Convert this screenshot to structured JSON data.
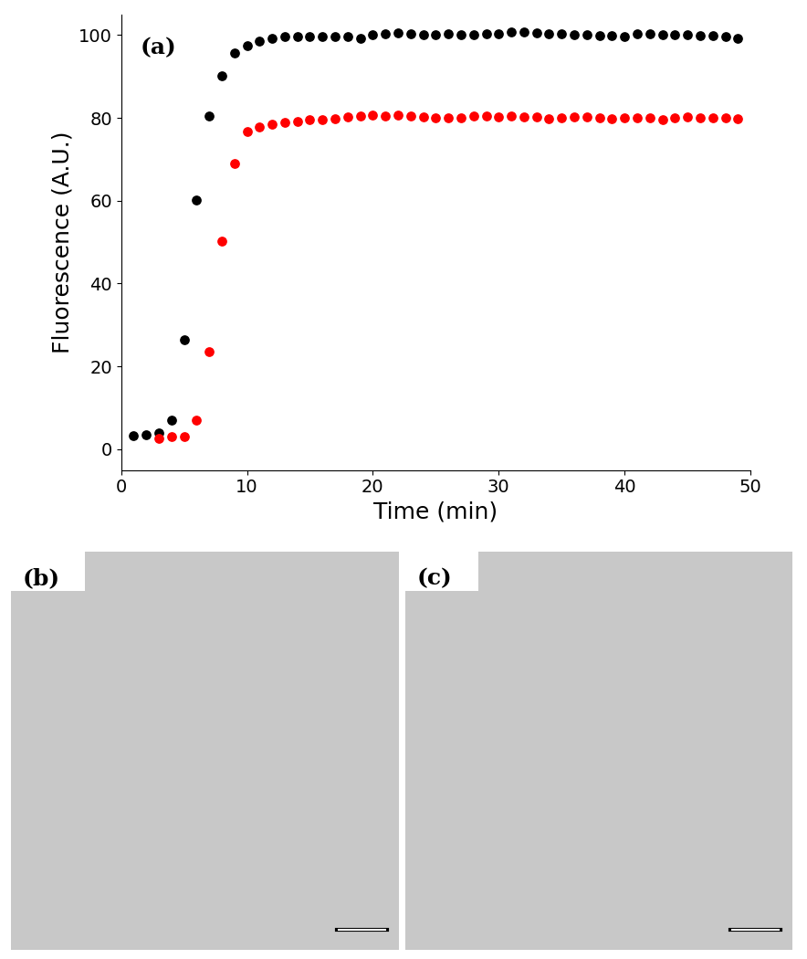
{
  "chart_data": {
    "type": "scatter",
    "panel_label": "(a)",
    "x_label": "Time (min)",
    "y_label": "Fluorescence (A.U.)",
    "xlim": [
      0,
      50
    ],
    "xticks": [
      0,
      10,
      20,
      30,
      40,
      50
    ],
    "ylim": [
      -5,
      105
    ],
    "yticks": [
      0,
      20,
      40,
      60,
      80,
      100
    ],
    "grid": false,
    "marker": "o",
    "series": [
      {
        "color": "#000000",
        "x": [
          1,
          2,
          3,
          4,
          5,
          6,
          7,
          8,
          9,
          10,
          11,
          12,
          13,
          14,
          15,
          16,
          17,
          18,
          19,
          20,
          21,
          22,
          23,
          24,
          25,
          26,
          27,
          28,
          29,
          30,
          31,
          32,
          33,
          34,
          35,
          36,
          37,
          38,
          39,
          40,
          41,
          42,
          43,
          44,
          45,
          46,
          47,
          48,
          49
        ],
        "values": [
          3.3,
          3.6,
          4.0,
          7.0,
          26.5,
          60.2,
          80.5,
          90.2,
          95.7,
          97.5,
          98.6,
          99.3,
          99.6,
          99.7,
          99.7,
          99.7,
          99.6,
          99.6,
          99.3,
          100.0,
          100.3,
          100.5,
          100.3,
          100.2,
          100.2,
          100.3,
          100.2,
          100.2,
          100.3,
          100.4,
          100.8,
          100.7,
          100.5,
          100.4,
          100.3,
          100.2,
          100.0,
          99.9,
          99.8,
          99.6,
          100.3,
          100.3,
          100.1,
          100.1,
          100.0,
          99.9,
          99.8,
          99.6,
          99.2
        ]
      },
      {
        "color": "#ff0000",
        "x": [
          3,
          4,
          5,
          6,
          7,
          8,
          9,
          10,
          11,
          12,
          13,
          14,
          15,
          16,
          17,
          18,
          19,
          20,
          21,
          22,
          23,
          24,
          25,
          26,
          27,
          28,
          29,
          30,
          31,
          32,
          33,
          34,
          35,
          36,
          37,
          38,
          39,
          40,
          41,
          42,
          43,
          44,
          45,
          46,
          47,
          48,
          49
        ],
        "values": [
          2.5,
          3.0,
          3.0,
          7.0,
          23.5,
          50.3,
          69.0,
          76.8,
          77.8,
          78.5,
          79.0,
          79.2,
          79.5,
          79.6,
          79.8,
          80.3,
          80.5,
          80.6,
          80.5,
          80.7,
          80.5,
          80.2,
          80.1,
          80.0,
          80.0,
          80.5,
          80.4,
          80.3,
          80.4,
          80.3,
          80.2,
          79.9,
          80.1,
          80.3,
          80.2,
          80.0,
          79.9,
          80.0,
          80.0,
          80.0,
          79.6,
          80.0,
          80.2,
          80.1,
          80.1,
          80.0,
          79.9
        ]
      }
    ]
  },
  "images": [
    {
      "label": "(b)"
    },
    {
      "label": "(c)"
    }
  ]
}
